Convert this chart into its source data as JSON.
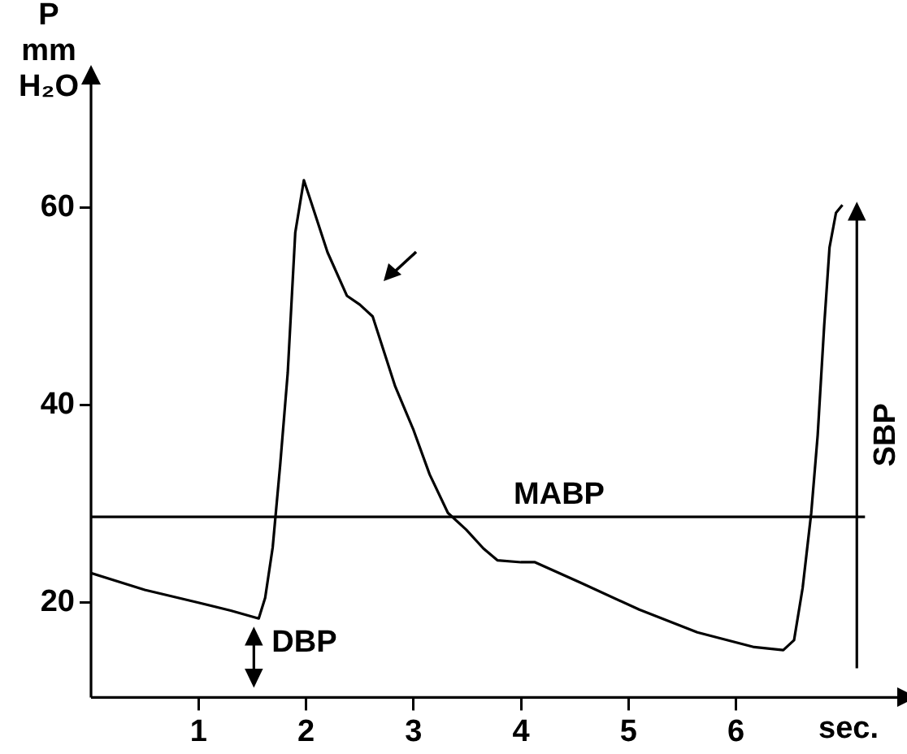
{
  "chart_data": {
    "type": "line",
    "ylabel": "P mm H₂O",
    "xlabel": "sec.",
    "series": [
      {
        "color": "#000000",
        "x": [
          0,
          0.5,
          1,
          1.3,
          1.56,
          1.62,
          1.69,
          1.76,
          1.83,
          1.9,
          1.98,
          2.05,
          2.2,
          2.38,
          2.5,
          2.62,
          2.83,
          3.0,
          3.15,
          3.32,
          3.49,
          3.65,
          3.78,
          4.0,
          4.13,
          4.56,
          5.1,
          5.64,
          6.17,
          6.44,
          6.54,
          6.62,
          6.7,
          6.76,
          6.82,
          6.87,
          6.93,
          6.99
        ],
        "values": [
          23.0,
          21.3,
          20.0,
          19.2,
          18.4,
          20.5,
          25.6,
          34,
          43.3,
          57.5,
          62.8,
          60.5,
          55.5,
          51.1,
          50.2,
          49.0,
          41.9,
          37.5,
          33,
          29.1,
          27.4,
          25.5,
          24.3,
          24.1,
          24.1,
          22.0,
          19.3,
          17.0,
          15.5,
          15.2,
          16.2,
          21.5,
          29.1,
          37,
          48,
          56,
          59.5,
          60.3
        ]
      }
    ],
    "xlim": [
      0,
      7.5
    ],
    "ylim": [
      10.4,
      72.5
    ],
    "xticks": [
      1,
      2,
      3,
      4,
      5,
      6
    ],
    "yticks": [
      20,
      40,
      60
    ],
    "grid": false,
    "legend": false,
    "marker": "none",
    "line_style": "solid",
    "ref_lines": [
      {
        "axis": "y",
        "value": 28.7,
        "label": "MABP"
      }
    ],
    "annotations": [
      {
        "text": "DBP",
        "x": 1.56,
        "y": 18.4
      },
      "SBP"
    ]
  }
}
